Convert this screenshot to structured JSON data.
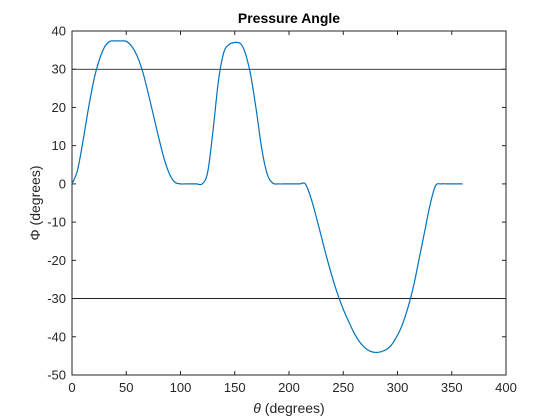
{
  "chart_data": {
    "type": "line",
    "title": "Pressure Angle",
    "xlabel_symbol": "θ",
    "xlabel_rest": " (degrees)",
    "ylabel": "Φ (degrees)",
    "xlim": [
      0,
      400
    ],
    "ylim": [
      -50,
      40
    ],
    "xticks": [
      0,
      50,
      100,
      150,
      200,
      250,
      300,
      350,
      400
    ],
    "yticks": [
      -50,
      -40,
      -30,
      -20,
      -10,
      0,
      10,
      20,
      30,
      40
    ],
    "grid": false,
    "series_color": "#0072BD",
    "reference_color": "#000000",
    "reference_lines": [
      30,
      -30
    ],
    "series": [
      {
        "x": [
          0,
          5,
          10,
          15,
          20,
          25,
          30,
          35,
          40,
          45,
          50,
          55,
          60,
          65,
          70,
          75,
          80,
          85,
          90,
          95,
          100,
          105,
          110,
          115,
          120,
          125,
          130,
          135,
          140,
          145,
          150,
          155,
          158,
          161,
          165,
          170,
          175,
          180,
          185,
          190,
          195,
          200,
          205,
          210,
          215,
          220,
          225,
          230,
          235,
          240,
          245,
          250,
          255,
          260,
          265,
          270,
          275,
          280,
          285,
          290,
          294,
          298,
          302,
          306,
          310,
          315,
          320,
          325,
          330,
          335,
          340,
          345,
          350,
          355,
          360
        ],
        "y": [
          0,
          3.5,
          11,
          19.5,
          27,
          32.3,
          35.8,
          37.3,
          37.4,
          37.4,
          37.3,
          36,
          33.5,
          29.5,
          24,
          18,
          12,
          6.5,
          2.5,
          0.4,
          0,
          0,
          0,
          0,
          0,
          3,
          14,
          27,
          34.5,
          36.5,
          37,
          36.8,
          35.5,
          33,
          28,
          19,
          9,
          2.5,
          0.2,
          0,
          0,
          0,
          0,
          0,
          0,
          -3.5,
          -8.5,
          -14,
          -19.5,
          -24.5,
          -29,
          -32.8,
          -36,
          -39,
          -41.3,
          -42.9,
          -43.8,
          -44.1,
          -43.9,
          -43.3,
          -42.3,
          -40.6,
          -38.5,
          -35.6,
          -32,
          -26.5,
          -19.5,
          -12.5,
          -5.5,
          -0.5,
          0,
          0,
          0,
          0,
          0
        ]
      }
    ]
  }
}
